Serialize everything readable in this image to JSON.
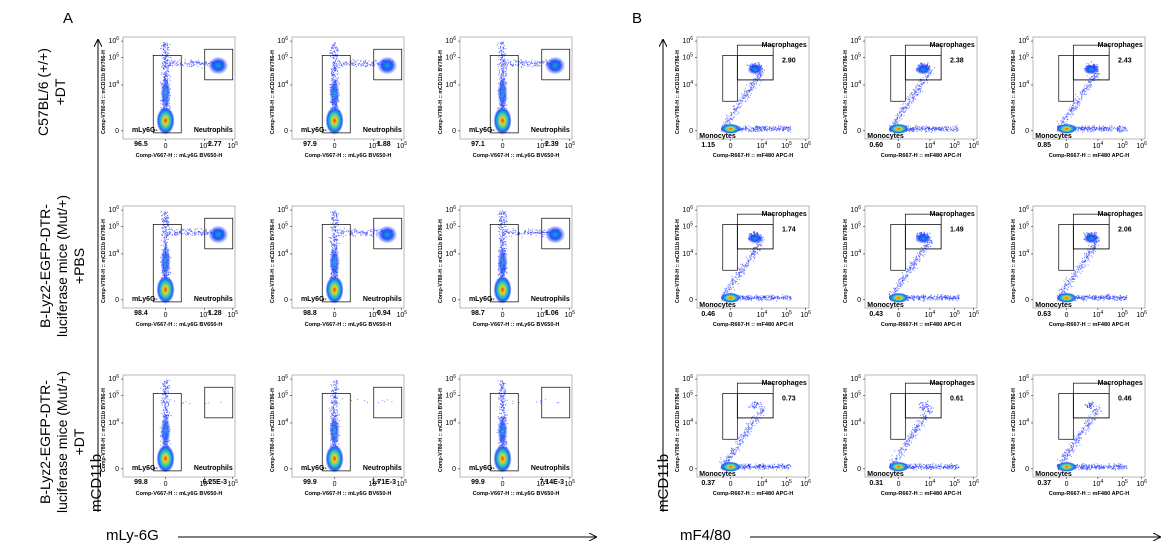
{
  "panels": {
    "A": {
      "letter": "A",
      "x_axis_label": "mLy-6G",
      "y_axis_label": "mCD11b"
    },
    "B": {
      "letter": "B",
      "x_axis_label": "mF4/80",
      "y_axis_label": "mCD11b"
    }
  },
  "row_labels": [
    "C57BL/6 (+/+)\n+DT",
    "B-Lyz2-EGFP-DTR-\nluciferase mice (Mut/+)\n+PBS",
    "B-Lyz2-EGFP-DTR-\nluciferase mice (Mut/+)\n+DT"
  ],
  "chart_data": [
    {
      "type": "scatter",
      "panel": "A",
      "x_axis_title": "Comp-V667-H :: mLy6G BV650-H",
      "y_axis_title": "Comp-V780-H :: mCD11b BV786-H",
      "x_ticks": [
        "0",
        "10^4",
        "10^5"
      ],
      "y_ticks": [
        "0",
        "10^4",
        "10^5",
        "10^6"
      ],
      "gates": [
        "mLy6G-",
        "Neutrophils"
      ],
      "rows": [
        {
          "condition": "C57BL/6 (+/+) +DT",
          "plots": [
            {
              "mLy6G-": "96.5",
              "Neutrophils": "2.77"
            },
            {
              "mLy6G-": "97.9",
              "Neutrophils": "1.88"
            },
            {
              "mLy6G-": "97.1",
              "Neutrophils": "2.39"
            }
          ]
        },
        {
          "condition": "B-Lyz2-EGFP-DTR-luciferase mice (Mut/+) +PBS",
          "plots": [
            {
              "mLy6G-": "98.4",
              "Neutrophils": "1.28"
            },
            {
              "mLy6G-": "98.8",
              "Neutrophils": "0.94"
            },
            {
              "mLy6G-": "98.7",
              "Neutrophils": "1.06"
            }
          ]
        },
        {
          "condition": "B-Lyz2-EGFP-DTR-luciferase mice (Mut/+) +DT",
          "plots": [
            {
              "mLy6G-": "99.8",
              "Neutrophils": "6.25E-3"
            },
            {
              "mLy6G-": "99.9",
              "Neutrophils": "1.71E-3"
            },
            {
              "mLy6G-": "99.9",
              "Neutrophils": "7.14E-3"
            }
          ]
        }
      ]
    },
    {
      "type": "scatter",
      "panel": "B",
      "x_axis_title": "Comp-R667-H :: mF480 APC-H",
      "y_axis_title": "Comp-V780-H :: mCD11b BV786-H",
      "x_ticks": [
        "0",
        "10^4",
        "10^5",
        "10^6"
      ],
      "y_ticks": [
        "0",
        "10^4",
        "10^5",
        "10^6"
      ],
      "gates": [
        "Macrophages",
        "Monocytes"
      ],
      "rows": [
        {
          "condition": "C57BL/6 (+/+) +DT",
          "plots": [
            {
              "Macrophages": "2.90",
              "Monocytes": "1.15"
            },
            {
              "Macrophages": "2.38",
              "Monocytes": "0.60"
            },
            {
              "Macrophages": "2.43",
              "Monocytes": "0.85"
            }
          ]
        },
        {
          "condition": "B-Lyz2-EGFP-DTR-luciferase mice (Mut/+) +PBS",
          "plots": [
            {
              "Macrophages": "1.74",
              "Monocytes": "0.46"
            },
            {
              "Macrophages": "1.49",
              "Monocytes": "0.43"
            },
            {
              "Macrophages": "2.06",
              "Monocytes": "0.63"
            }
          ]
        },
        {
          "condition": "B-Lyz2-EGFP-DTR-luciferase mice (Mut/+) +DT",
          "plots": [
            {
              "Macrophages": "0.73",
              "Monocytes": "0.37"
            },
            {
              "Macrophages": "0.61",
              "Monocytes": "0.31"
            },
            {
              "Macrophages": "0.46",
              "Monocytes": "0.37"
            }
          ]
        }
      ]
    }
  ]
}
